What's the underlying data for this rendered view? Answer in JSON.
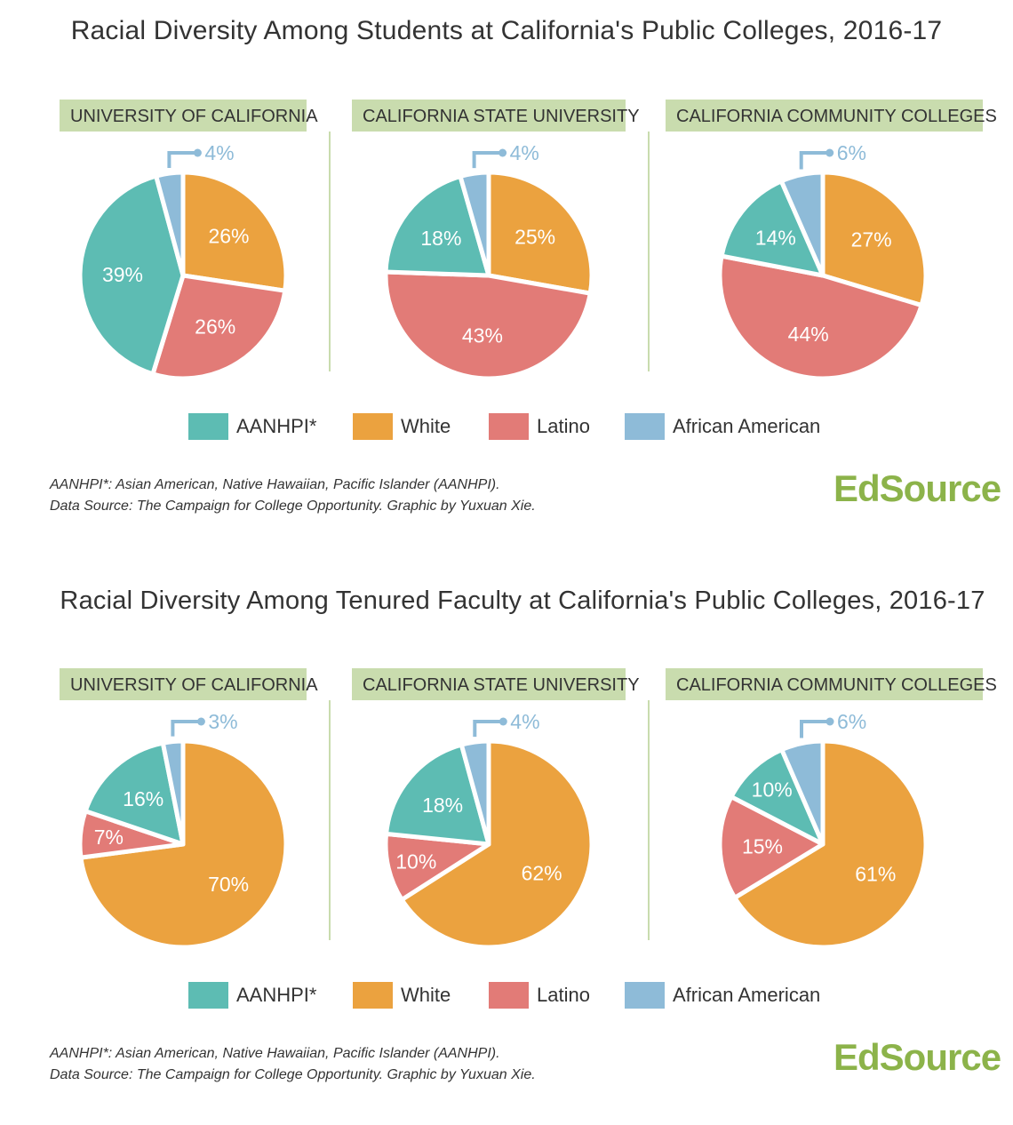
{
  "colors": {
    "AANHPI*": "#5dbcb3",
    "White": "#eba23f",
    "Latino": "#e27b77",
    "African American": "#8ebbd8",
    "header_bg": "#c9dcae",
    "logo": "#8cb34a"
  },
  "legend": [
    "AANHPI*",
    "White",
    "Latino",
    "African American"
  ],
  "note_line1": "AANHPI*: Asian American, Native Hawaiian, Pacific Islander (AANHPI).",
  "note_line2": "Data Source: The Campaign for College Opportunity. Graphic by Yuxuan Xie.",
  "logo": "EdSource",
  "chart_data": [
    {
      "type": "pie",
      "title": "Racial Diversity Among Students at California's Public Colleges, 2016-17",
      "name": "UNIVERSITY OF CALIFORNIA",
      "slices": [
        {
          "label": "White",
          "value": 26
        },
        {
          "label": "Latino",
          "value": 26
        },
        {
          "label": "AANHPI*",
          "value": 39
        },
        {
          "label": "African American",
          "value": 4
        }
      ]
    },
    {
      "type": "pie",
      "title": "Racial Diversity Among Students at California's Public Colleges, 2016-17",
      "name": "CALIFORNIA STATE UNIVERSITY",
      "slices": [
        {
          "label": "White",
          "value": 25
        },
        {
          "label": "Latino",
          "value": 43
        },
        {
          "label": "AANHPI*",
          "value": 18
        },
        {
          "label": "African American",
          "value": 4
        }
      ]
    },
    {
      "type": "pie",
      "title": "Racial Diversity Among Students at California's Public Colleges, 2016-17",
      "name": "CALIFORNIA COMMUNITY COLLEGES",
      "slices": [
        {
          "label": "White",
          "value": 27
        },
        {
          "label": "Latino",
          "value": 44
        },
        {
          "label": "AANHPI*",
          "value": 14
        },
        {
          "label": "African American",
          "value": 6
        }
      ]
    },
    {
      "type": "pie",
      "title": "Racial Diversity Among Tenured Faculty at California's Public Colleges, 2016-17",
      "name": "UNIVERSITY OF CALIFORNIA",
      "slices": [
        {
          "label": "White",
          "value": 70
        },
        {
          "label": "Latino",
          "value": 7
        },
        {
          "label": "AANHPI*",
          "value": 16
        },
        {
          "label": "African American",
          "value": 3
        }
      ]
    },
    {
      "type": "pie",
      "title": "Racial Diversity Among Tenured Faculty at California's Public Colleges, 2016-17",
      "name": "CALIFORNIA STATE UNIVERSITY",
      "slices": [
        {
          "label": "White",
          "value": 62
        },
        {
          "label": "Latino",
          "value": 10
        },
        {
          "label": "AANHPI*",
          "value": 18
        },
        {
          "label": "African American",
          "value": 4
        }
      ]
    },
    {
      "type": "pie",
      "title": "Racial Diversity Among Tenured Faculty at California's Public Colleges, 2016-17",
      "name": "CALIFORNIA COMMUNITY COLLEGES",
      "slices": [
        {
          "label": "White",
          "value": 61
        },
        {
          "label": "Latino",
          "value": 15
        },
        {
          "label": "AANHPI*",
          "value": 10
        },
        {
          "label": "African American",
          "value": 6
        }
      ]
    }
  ],
  "panels": [
    {
      "title": "Racial Diversity Among Students at California's Public Colleges, 2016-17",
      "charts": [
        "UNIVERSITY OF CALIFORNIA",
        "CALIFORNIA STATE UNIVERSITY",
        "CALIFORNIA COMMUNITY COLLEGES"
      ]
    },
    {
      "title": "Racial Diversity Among Tenured Faculty at California's Public Colleges, 2016-17",
      "charts": [
        "UNIVERSITY OF CALIFORNIA",
        "CALIFORNIA STATE UNIVERSITY",
        "CALIFORNIA COMMUNITY COLLEGES"
      ]
    }
  ]
}
